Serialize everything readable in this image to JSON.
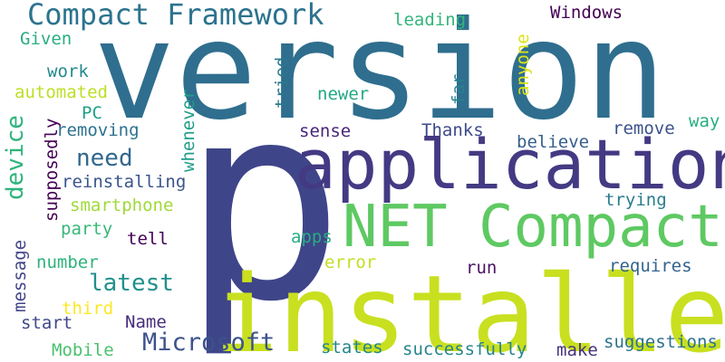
{
  "words": [
    {
      "text": "version",
      "color": "#2f6e8e"
    },
    {
      "text": "p",
      "color": "#3f4589"
    },
    {
      "text": "installed",
      "color": "#c8e020"
    },
    {
      "text": "application",
      "color": "#433a83"
    },
    {
      "text": "Compact",
      "color": "#5ec962"
    },
    {
      "text": "NET",
      "color": "#5ec962"
    },
    {
      "text": "Compact Framework",
      "color": "#2c738e"
    },
    {
      "text": "Microsoft",
      "color": "#3b528b"
    },
    {
      "text": "device",
      "color": "#2fb47c"
    },
    {
      "text": "need",
      "color": "#31688e"
    },
    {
      "text": "latest",
      "color": "#21908d"
    },
    {
      "text": "leading",
      "color": "#31b57b"
    },
    {
      "text": "Windows",
      "color": "#440154"
    },
    {
      "text": "Given",
      "color": "#29af7f"
    },
    {
      "text": "anyone",
      "color": "#dde318"
    },
    {
      "text": "far",
      "color": "#26828e"
    },
    {
      "text": "work",
      "color": "#23898e"
    },
    {
      "text": "automated",
      "color": "#bddf26"
    },
    {
      "text": "tried",
      "color": "#2a778e"
    },
    {
      "text": "newer",
      "color": "#22a884"
    },
    {
      "text": "whenever",
      "color": "#1f9e89"
    },
    {
      "text": "PC",
      "color": "#1fa188"
    },
    {
      "text": "supposedly",
      "color": "#440154"
    },
    {
      "text": "removing",
      "color": "#2c728e"
    },
    {
      "text": "sense",
      "color": "#482677"
    },
    {
      "text": "Thanks",
      "color": "#3e4a89"
    },
    {
      "text": "believe",
      "color": "#355f8d"
    },
    {
      "text": "remove",
      "color": "#3b528b"
    },
    {
      "text": "way",
      "color": "#28ae80"
    },
    {
      "text": "reinstalling",
      "color": "#3a548c"
    },
    {
      "text": "smartphone",
      "color": "#a0da39"
    },
    {
      "text": "trying",
      "color": "#287c8e"
    },
    {
      "text": "party",
      "color": "#37b878"
    },
    {
      "text": "tell",
      "color": "#440154"
    },
    {
      "text": "apps",
      "color": "#27ad81"
    },
    {
      "text": "message",
      "color": "#414487"
    },
    {
      "text": "number",
      "color": "#2eb37c"
    },
    {
      "text": "error",
      "color": "#c2df23"
    },
    {
      "text": "run",
      "color": "#471365"
    },
    {
      "text": "requires",
      "color": "#33638d"
    },
    {
      "text": "third",
      "color": "#fde725"
    },
    {
      "text": "start",
      "color": "#3f4889"
    },
    {
      "text": "Name",
      "color": "#472d7b"
    },
    {
      "text": "Mobile",
      "color": "#4ac16d"
    },
    {
      "text": "states",
      "color": "#25858e"
    },
    {
      "text": "successfully",
      "color": "#25848e"
    },
    {
      "text": "make",
      "color": "#46337e"
    },
    {
      "text": "suggestions",
      "color": "#2c728e"
    }
  ]
}
